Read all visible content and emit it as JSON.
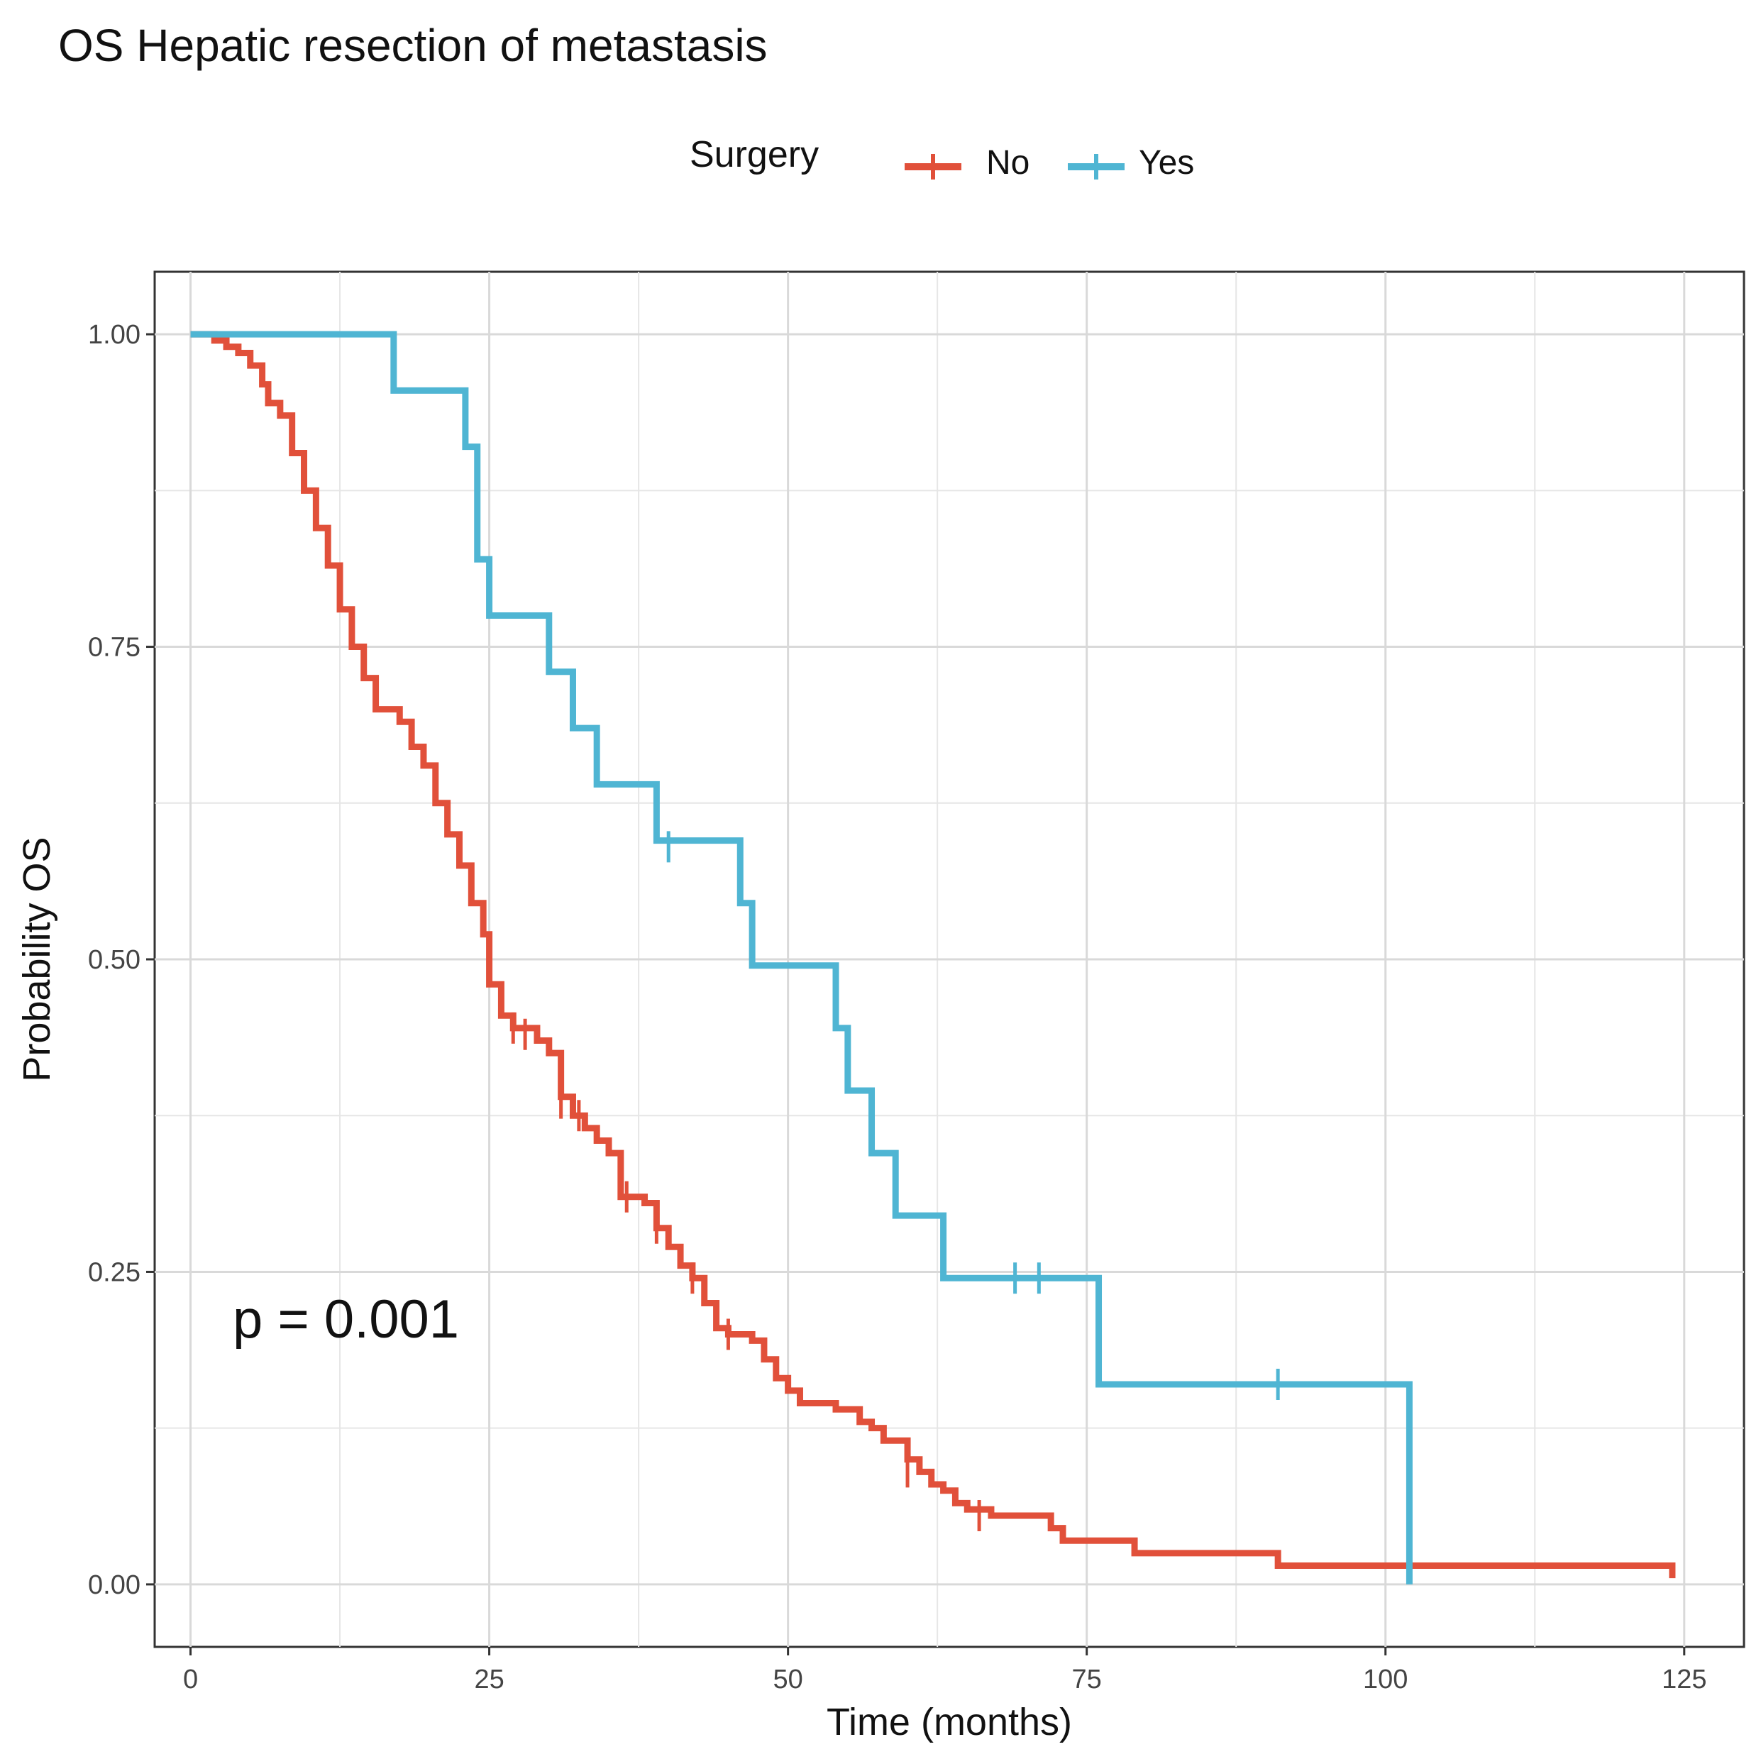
{
  "chart_data": {
    "type": "line",
    "subtype": "kaplan-meier",
    "title": "OS Hepatic resection of metastasis",
    "xlabel": "Time (months)",
    "ylabel": "Probability OS",
    "xlim": [
      -3,
      130
    ],
    "ylim": [
      -0.05,
      1.05
    ],
    "xticks": [
      0,
      25,
      50,
      75,
      100,
      125
    ],
    "xtick_labels": [
      "0",
      "25",
      "50",
      "75",
      "100",
      "125"
    ],
    "yticks": [
      0,
      0.25,
      0.5,
      0.75,
      1
    ],
    "ytick_labels": [
      "0.00",
      "0.25",
      "0.50",
      "0.75",
      "1.00"
    ],
    "grid": true,
    "legend": {
      "title": "Surgery",
      "position": "top"
    },
    "annotation": "p = 0.001",
    "series": [
      {
        "name": "No",
        "color": "#e1503a",
        "steps": [
          [
            0,
            1.0
          ],
          [
            2,
            0.995
          ],
          [
            3,
            0.99
          ],
          [
            4,
            0.985
          ],
          [
            5,
            0.975
          ],
          [
            6,
            0.96
          ],
          [
            6.5,
            0.945
          ],
          [
            7.5,
            0.935
          ],
          [
            8.5,
            0.905
          ],
          [
            9.5,
            0.875
          ],
          [
            10.5,
            0.845
          ],
          [
            11.5,
            0.815
          ],
          [
            12.5,
            0.78
          ],
          [
            13.5,
            0.75
          ],
          [
            14.5,
            0.725
          ],
          [
            15.5,
            0.7
          ],
          [
            17.5,
            0.69
          ],
          [
            18.5,
            0.67
          ],
          [
            19.5,
            0.655
          ],
          [
            20.5,
            0.625
          ],
          [
            21.5,
            0.6
          ],
          [
            22.5,
            0.575
          ],
          [
            23.5,
            0.545
          ],
          [
            24.5,
            0.52
          ],
          [
            25,
            0.48
          ],
          [
            26,
            0.455
          ],
          [
            27,
            0.445
          ],
          [
            29,
            0.435
          ],
          [
            30,
            0.425
          ],
          [
            31,
            0.39
          ],
          [
            32,
            0.375
          ],
          [
            33,
            0.365
          ],
          [
            34,
            0.355
          ],
          [
            35,
            0.345
          ],
          [
            36,
            0.31
          ],
          [
            38,
            0.305
          ],
          [
            39,
            0.285
          ],
          [
            40,
            0.27
          ],
          [
            41,
            0.255
          ],
          [
            42,
            0.245
          ],
          [
            43,
            0.225
          ],
          [
            44,
            0.205
          ],
          [
            45,
            0.2
          ],
          [
            47,
            0.195
          ],
          [
            48,
            0.18
          ],
          [
            49,
            0.165
          ],
          [
            50,
            0.155
          ],
          [
            51,
            0.145
          ],
          [
            54,
            0.14
          ],
          [
            56,
            0.13
          ],
          [
            57,
            0.125
          ],
          [
            58,
            0.115
          ],
          [
            60,
            0.1
          ],
          [
            61,
            0.09
          ],
          [
            62,
            0.08
          ],
          [
            63,
            0.075
          ],
          [
            64,
            0.065
          ],
          [
            65,
            0.06
          ],
          [
            67,
            0.055
          ],
          [
            72,
            0.045
          ],
          [
            73,
            0.035
          ],
          [
            79,
            0.025
          ],
          [
            91,
            0.015
          ],
          [
            124,
            0.005
          ]
        ],
        "end": 124,
        "censors": [
          [
            27,
            0.445
          ],
          [
            28,
            0.44
          ],
          [
            31,
            0.385
          ],
          [
            32.5,
            0.375
          ],
          [
            36.5,
            0.31
          ],
          [
            39,
            0.285
          ],
          [
            42,
            0.245
          ],
          [
            45,
            0.2
          ],
          [
            60,
            0.09
          ],
          [
            66,
            0.055
          ]
        ]
      },
      {
        "name": "Yes",
        "color": "#4fb5d3",
        "steps": [
          [
            0,
            1.0
          ],
          [
            17,
            0.955
          ],
          [
            23,
            0.91
          ],
          [
            24,
            0.82
          ],
          [
            25,
            0.775
          ],
          [
            30,
            0.73
          ],
          [
            32,
            0.685
          ],
          [
            34,
            0.64
          ],
          [
            39,
            0.595
          ],
          [
            46,
            0.545
          ],
          [
            47,
            0.495
          ],
          [
            54,
            0.445
          ],
          [
            55,
            0.395
          ],
          [
            57,
            0.345
          ],
          [
            59,
            0.295
          ],
          [
            63,
            0.245
          ],
          [
            76,
            0.16
          ],
          [
            102,
            0.0
          ]
        ],
        "end": 102,
        "censors": [
          [
            40,
            0.59
          ],
          [
            69,
            0.245
          ],
          [
            71,
            0.245
          ],
          [
            91,
            0.16
          ]
        ]
      }
    ]
  }
}
